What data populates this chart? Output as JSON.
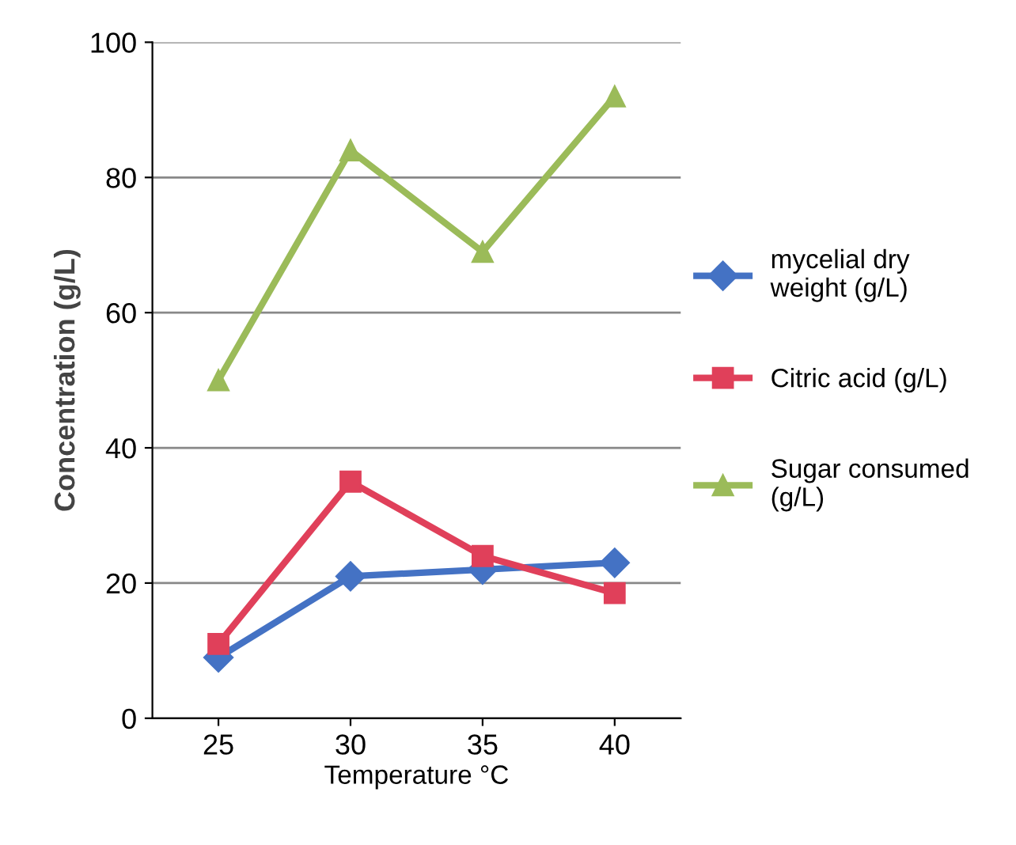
{
  "chart_data": {
    "type": "line",
    "xlabel": "Temperature °C",
    "ylabel": "Concentration (g/L)",
    "categories": [
      "25",
      "30",
      "35",
      "40"
    ],
    "series": [
      {
        "name": "mycelial dry\nweight (g/L)",
        "color": "#4472c4",
        "marker": "diamond",
        "values": [
          9,
          21,
          22,
          23
        ]
      },
      {
        "name": "Citric acid (g/L)",
        "color": "#e0405a",
        "marker": "square",
        "values": [
          11,
          35,
          24,
          18.5
        ]
      },
      {
        "name": "Sugar consumed\n(g/L)",
        "color": "#9bbb59",
        "marker": "triangle",
        "values": [
          50,
          84,
          69,
          92
        ]
      }
    ],
    "ylim": [
      0,
      100
    ],
    "yticks": [
      0,
      20,
      40,
      60,
      80,
      100
    ],
    "grid": "y",
    "legend": "right",
    "line_style": "solid"
  }
}
